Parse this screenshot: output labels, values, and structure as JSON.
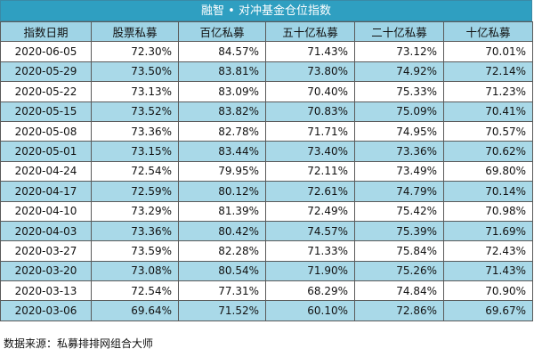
{
  "title": "融智 • 对冲基金仓位指数",
  "columns": [
    "指数日期",
    "股票私募",
    "百亿私募",
    "五十亿私募",
    "二十亿私募",
    "十亿私募"
  ],
  "rows": [
    [
      "2020-06-05",
      "72.30%",
      "84.57%",
      "71.43%",
      "73.12%",
      "70.01%"
    ],
    [
      "2020-05-29",
      "73.50%",
      "83.81%",
      "73.80%",
      "74.92%",
      "72.14%"
    ],
    [
      "2020-05-22",
      "73.13%",
      "83.09%",
      "70.40%",
      "75.33%",
      "71.23%"
    ],
    [
      "2020-05-15",
      "73.52%",
      "83.82%",
      "70.83%",
      "75.09%",
      "70.41%"
    ],
    [
      "2020-05-08",
      "73.36%",
      "82.78%",
      "71.71%",
      "74.95%",
      "70.57%"
    ],
    [
      "2020-05-01",
      "73.15%",
      "83.44%",
      "73.40%",
      "73.36%",
      "70.62%"
    ],
    [
      "2020-04-24",
      "72.54%",
      "79.95%",
      "72.11%",
      "73.49%",
      "69.80%"
    ],
    [
      "2020-04-17",
      "72.59%",
      "80.12%",
      "72.61%",
      "74.79%",
      "70.14%"
    ],
    [
      "2020-04-10",
      "73.29%",
      "81.39%",
      "72.49%",
      "75.42%",
      "70.98%"
    ],
    [
      "2020-04-03",
      "73.36%",
      "80.42%",
      "74.57%",
      "75.39%",
      "71.69%"
    ],
    [
      "2020-03-27",
      "73.59%",
      "82.28%",
      "71.33%",
      "75.84%",
      "72.43%"
    ],
    [
      "2020-03-20",
      "73.08%",
      "80.54%",
      "71.90%",
      "75.26%",
      "71.43%"
    ],
    [
      "2020-03-13",
      "72.54%",
      "77.31%",
      "68.29%",
      "74.84%",
      "70.90%"
    ],
    [
      "2020-03-06",
      "69.64%",
      "71.52%",
      "60.10%",
      "72.86%",
      "69.67%"
    ]
  ],
  "source": "数据来源：私募排排网组合大师",
  "colors": {
    "title_bg": "#2f9fc1",
    "header_bg": "#9fd4e6",
    "alt_row_bg": "#a9d9e8",
    "plain_row_bg": "#ffffff"
  }
}
